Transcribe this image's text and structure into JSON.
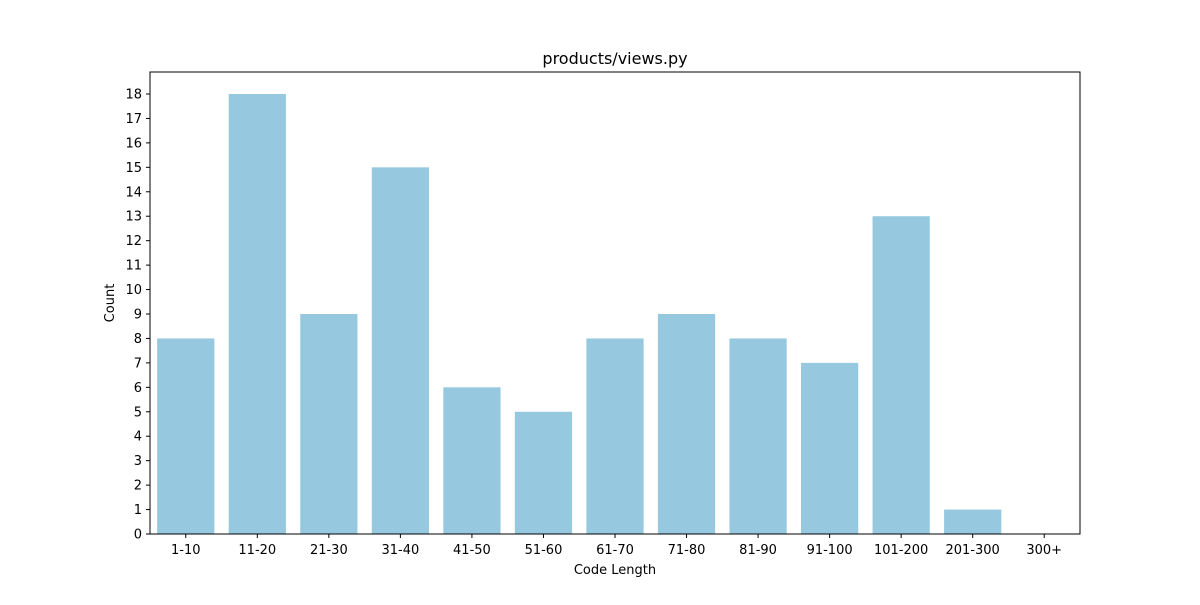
{
  "chart_data": {
    "type": "bar",
    "title": "products/views.py",
    "xlabel": "Code Length",
    "ylabel": "Count",
    "categories": [
      "1-10",
      "11-20",
      "21-30",
      "31-40",
      "41-50",
      "51-60",
      "61-70",
      "71-80",
      "81-90",
      "91-100",
      "101-200",
      "201-300",
      "300+"
    ],
    "values": [
      8,
      18,
      9,
      15,
      6,
      5,
      8,
      9,
      8,
      7,
      13,
      1,
      0
    ],
    "ylim": [
      0,
      18.9
    ],
    "yticks": [
      0,
      1,
      2,
      3,
      4,
      5,
      6,
      7,
      8,
      9,
      10,
      11,
      12,
      13,
      14,
      15,
      16,
      17,
      18
    ],
    "bar_color": "#96c9df",
    "grid": false,
    "legend": "none"
  }
}
